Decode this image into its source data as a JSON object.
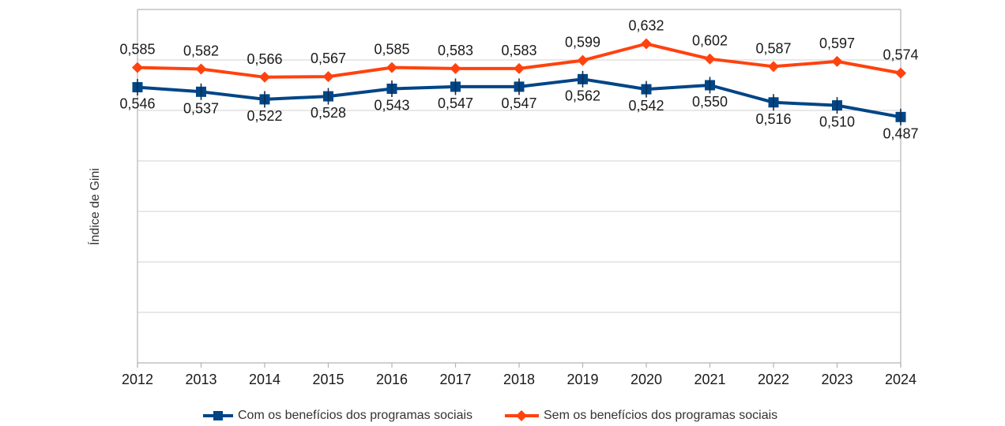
{
  "chart_data": {
    "type": "line",
    "title": "",
    "xlabel": "",
    "ylabel": "Índice de Gini",
    "ylim": [
      0,
      0.7
    ],
    "grid_step": 0.1,
    "grid_on": true,
    "legend_position": "bottom",
    "categories": [
      "2012",
      "2013",
      "2014",
      "2015",
      "2016",
      "2017",
      "2018",
      "2019",
      "2020",
      "2021",
      "2022",
      "2023",
      "2024"
    ],
    "series": [
      {
        "name": "Com os benefícios dos programas sociais",
        "color": "#004586",
        "marker": "square",
        "marker_line_color": "#0c2d4d",
        "label_position": "below",
        "values": [
          0.546,
          0.537,
          0.522,
          0.528,
          0.543,
          0.547,
          0.547,
          0.562,
          0.542,
          0.55,
          0.516,
          0.51,
          0.487
        ],
        "labels": [
          "0,546",
          "0,537",
          "0,522",
          "0,528",
          "0,543",
          "0,547",
          "0,547",
          "0,562",
          "0,542",
          "0,550",
          "0,516",
          "0,510",
          "0,487"
        ]
      },
      {
        "name": "Sem os benefícios dos programas sociais",
        "color": "#FF420E",
        "marker": "diamond",
        "label_position": "above",
        "values": [
          0.585,
          0.582,
          0.566,
          0.567,
          0.585,
          0.583,
          0.583,
          0.599,
          0.632,
          0.602,
          0.587,
          0.597,
          0.574
        ],
        "labels": [
          "0,585",
          "0,582",
          "0,566",
          "0,567",
          "0,585",
          "0,583",
          "0,583",
          "0,599",
          "0,632",
          "0,602",
          "0,587",
          "0,597",
          "0,574"
        ]
      }
    ],
    "colors": {
      "gridline": "#d0d0d0",
      "plot_border": "#b3b3b3",
      "axis_text": "#1a1a1a",
      "data_label_text": "#1a1a1a"
    }
  }
}
